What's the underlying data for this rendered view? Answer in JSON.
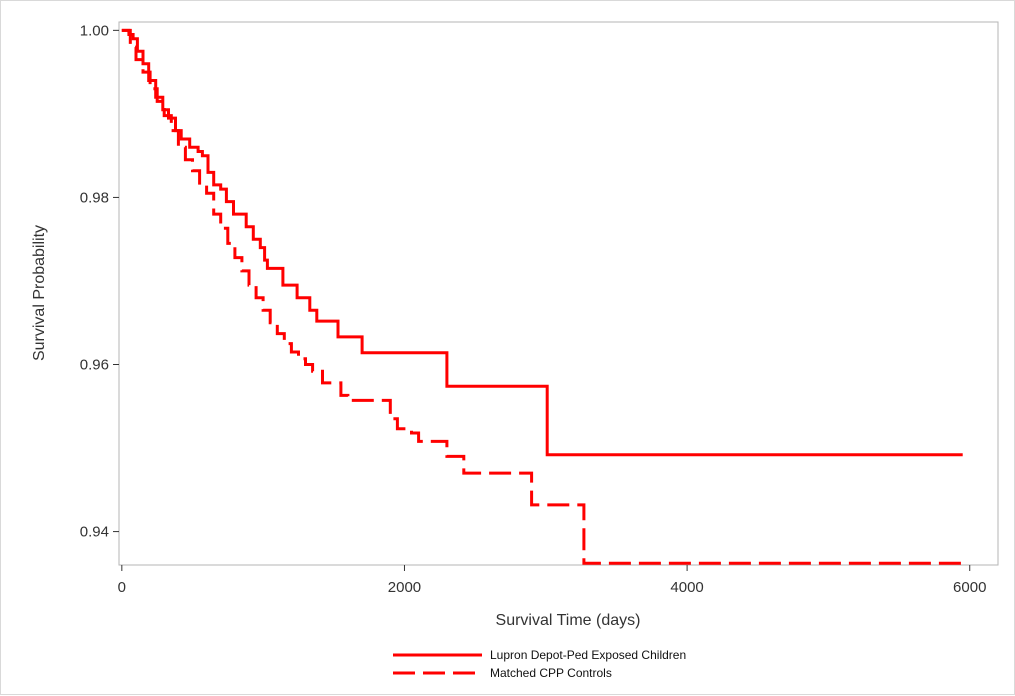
{
  "chart_data": {
    "type": "line",
    "title": "",
    "xlabel": "Survival Time (days)",
    "ylabel": "Survival Probability",
    "xlim": [
      -20,
      6200
    ],
    "ylim": [
      0.936,
      1.001
    ],
    "x_ticks": [
      0,
      2000,
      4000,
      6000
    ],
    "x_tick_labels": [
      "0",
      "2000",
      "4000",
      "6000"
    ],
    "y_ticks": [
      0.94,
      0.96,
      0.98,
      1.0
    ],
    "y_tick_labels": [
      "0.94",
      "0.96",
      "0.98",
      "1.00"
    ],
    "grid": false,
    "legend_position": "bottom-center",
    "series": [
      {
        "name": "Lupron Depot-Ped Exposed Children",
        "color": "#ff0000",
        "style": "solid",
        "step": true,
        "x": [
          0,
          50,
          80,
          110,
          150,
          190,
          240,
          290,
          330,
          380,
          420,
          480,
          540,
          570,
          610,
          650,
          700,
          740,
          790,
          880,
          930,
          980,
          1010,
          1030,
          1140,
          1240,
          1330,
          1380,
          1530,
          1700,
          2300,
          3010,
          5950
        ],
        "y": [
          1.0,
          0.9995,
          0.999,
          0.9975,
          0.996,
          0.994,
          0.992,
          0.9905,
          0.9895,
          0.988,
          0.987,
          0.986,
          0.9855,
          0.985,
          0.983,
          0.9815,
          0.981,
          0.9795,
          0.978,
          0.9765,
          0.975,
          0.974,
          0.9725,
          0.9715,
          0.9695,
          0.968,
          0.9665,
          0.9652,
          0.9633,
          0.9614,
          0.9574,
          0.9492,
          0.9492
        ]
      },
      {
        "name": "Matched CPP Controls",
        "color": "#ff0000",
        "style": "dashed",
        "step": true,
        "x": [
          0,
          60,
          100,
          150,
          200,
          250,
          300,
          350,
          400,
          450,
          500,
          550,
          600,
          650,
          700,
          750,
          800,
          850,
          900,
          950,
          1000,
          1050,
          1100,
          1150,
          1200,
          1250,
          1300,
          1350,
          1420,
          1550,
          1600,
          1900,
          1950,
          2050,
          2100,
          2300,
          2420,
          2900,
          3000,
          3270,
          5950
        ],
        "y": [
          1.0,
          0.998,
          0.9965,
          0.995,
          0.993,
          0.9915,
          0.9898,
          0.988,
          0.986,
          0.9845,
          0.9832,
          0.9815,
          0.9805,
          0.978,
          0.9763,
          0.9745,
          0.9728,
          0.9712,
          0.9695,
          0.968,
          0.9665,
          0.965,
          0.9637,
          0.9625,
          0.9615,
          0.9607,
          0.96,
          0.9592,
          0.9578,
          0.9563,
          0.9557,
          0.9535,
          0.9523,
          0.9518,
          0.9508,
          0.949,
          0.947,
          0.9432,
          0.9432,
          0.9362,
          0.9362
        ]
      }
    ]
  }
}
